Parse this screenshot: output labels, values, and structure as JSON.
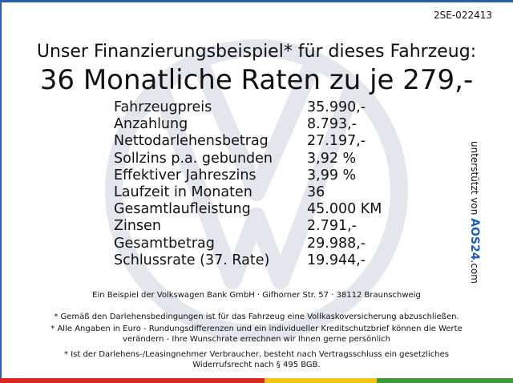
{
  "ref": "2SE-022413",
  "headline": "Unser Finanzierungsbeispiel* für dieses Fahrzeug:",
  "title": "36 Monatliche Raten zu je 279,-",
  "rows": [
    [
      "Fahrzeugpreis",
      "35.990,-"
    ],
    [
      "Anzahlung",
      "8.793,-"
    ],
    [
      "Nettodarlehensbetrag",
      "27.197,-"
    ],
    [
      "Sollzins p.a. gebunden",
      "3,92 %"
    ],
    [
      "Effektiver Jahreszins",
      "3,99 %"
    ],
    [
      "Laufzeit in Monaten",
      "36"
    ],
    [
      "Gesamtlaufleistung",
      "45.000 KM"
    ],
    [
      "Zinsen",
      "2.791,-"
    ],
    [
      "Gesamtbetrag",
      "29.988,-"
    ],
    [
      "Schlussrate (37. Rate)",
      "19.944,-"
    ]
  ],
  "footer": [
    "Ein Beispiel der Volkswagen Bank GmbH · Gifhorner Str. 57 · 38112 Braunschweig",
    "* Gemäß den Darlehensbedingungen ist für das Fahrzeug eine Vollkaskoversicherung abzuschließen.",
    "* Alle Angaben in Euro - Rundungsdifferenzen und ein individueller Kreditschutzbrief können die Werte",
    "verändern - Ihre Wunschrate errechnen wir Ihnen gerne persönlich",
    "* Ist der Darlehens-/Leasingnehmer Verbraucher, besteht nach Vertragsschluss ein gesetzliches",
    "Widerrufsrecht nach § 495 BGB."
  ],
  "sponsor": {
    "prefix": "unterstützt von",
    "brand": "AOS24",
    "suffix": ".com"
  }
}
